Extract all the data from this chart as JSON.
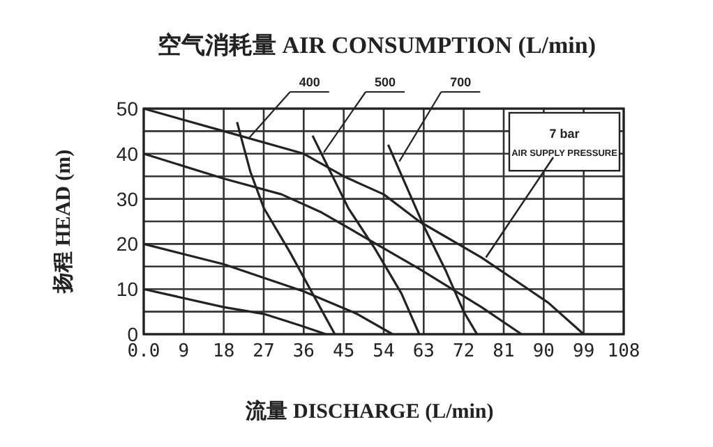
{
  "chart_data": {
    "type": "line",
    "title": "空气消耗量 AIR CONSUMPTION (L/min)",
    "xlabel": "流量 DISCHARGE (L/min)",
    "ylabel": "扬程 HEAD (m)",
    "xlim": [
      0,
      108
    ],
    "ylim": [
      0,
      50
    ],
    "xticks": [
      {
        "value": 0,
        "label": "0.0"
      },
      9,
      18,
      27,
      36,
      45,
      54,
      63,
      72,
      81,
      90,
      99,
      108
    ],
    "yticks": [
      0,
      {
        "value": 5,
        "label": null
      },
      10,
      {
        "value": 15,
        "label": null
      },
      20,
      {
        "value": 25,
        "label": null
      },
      30,
      {
        "value": 35,
        "label": null
      },
      40,
      {
        "value": 45,
        "label": null
      },
      50
    ],
    "grid": true,
    "series": [
      {
        "color": "#222222",
        "x": [
          0,
          18,
          36,
          45,
          54,
          62,
          76,
          91,
          99
        ],
        "values": [
          50,
          45,
          40,
          35,
          31,
          25,
          17,
          7,
          0
        ]
      },
      {
        "color": "#222222",
        "x": [
          0,
          18,
          31,
          40,
          62,
          76,
          85
        ],
        "values": [
          40,
          34.5,
          31,
          27,
          14.5,
          6,
          0
        ]
      },
      {
        "color": "#222222",
        "x": [
          0,
          18,
          36,
          48,
          56
        ],
        "values": [
          20,
          15.5,
          9.5,
          4.5,
          0
        ]
      },
      {
        "color": "#222222",
        "x": [
          0,
          18,
          27,
          35,
          41
        ],
        "values": [
          10,
          6,
          4.5,
          2,
          0
        ]
      },
      {
        "name": "400",
        "color": "#222222",
        "x": [
          21,
          24,
          27,
          33,
          38,
          43
        ],
        "values": [
          47,
          36,
          28,
          18,
          9,
          0
        ]
      },
      {
        "name": "500",
        "color": "#222222",
        "x": [
          38,
          42,
          46,
          52,
          58,
          62
        ],
        "values": [
          44,
          36,
          28,
          19,
          9,
          0
        ]
      },
      {
        "name": "700",
        "color": "#222222",
        "x": [
          55,
          59,
          63,
          68,
          72,
          75
        ],
        "values": [
          42,
          33,
          24,
          14,
          5,
          0
        ]
      }
    ],
    "annotations": [
      "7 bar",
      {
        "text": "AIR SUPPLY PRESSURE",
        "x": 77,
        "y": 17
      }
    ]
  }
}
